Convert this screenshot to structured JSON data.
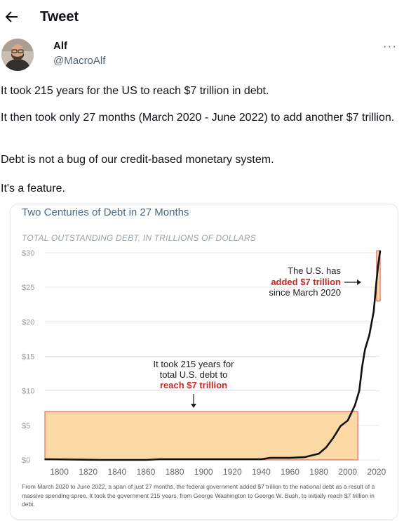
{
  "header": {
    "title": "Tweet",
    "back_icon": "arrow-left-icon"
  },
  "author": {
    "name": "Alf",
    "handle": "@MacroAlf",
    "more_icon": "more-horizontal-icon"
  },
  "tweet": {
    "line1": "It took 215 years for the US to reach $7 trillion in debt.",
    "line2": "It then took only 27 months (March 2020 - June 2022) to add another $7 trillion.",
    "line3": "Debt is not a bug of our credit-based monetary system.",
    "line4": "It's a feature."
  },
  "chart": {
    "title": "Two Centuries of Debt in 27 Months",
    "subtitle": "TOTAL OUTSTANDING DEBT, IN TRILLIONS OF DOLLARS",
    "annotation_right": {
      "l1": "The U.S. has",
      "l2": "added $7 trillion",
      "l3": "since March 2020"
    },
    "annotation_left": {
      "l1": "It took 215 years for",
      "l2": "total U.S. debt to",
      "l3": "reach $7 trillion"
    },
    "footnote": "From March 2020 to June 2022, a span of just 27 months, the federal government added $7 trillion to the national debt as a result of a massive spending spree. It took the government 215 years, from George Washington to George W. Bush, to initially reach $7 trillion in debt.",
    "colors": {
      "line": "#111111",
      "box_fill": "#fbd9a4",
      "box_stroke": "#d9534f",
      "highlight": "#c62828",
      "grid": "#e3e3e3"
    }
  },
  "chart_data": {
    "type": "line",
    "title": "Two Centuries of Debt in 27 Months",
    "subtitle": "TOTAL OUTSTANDING DEBT, IN TRILLIONS OF DOLLARS",
    "xlim": [
      1790,
      2022
    ],
    "ylim": [
      0,
      30
    ],
    "x_ticks": [
      1800,
      1820,
      1840,
      1860,
      1880,
      1900,
      1920,
      1940,
      1960,
      1980,
      2000,
      2020
    ],
    "y_ticks": [
      0,
      5,
      10,
      15,
      20,
      25,
      30
    ],
    "y_tick_labels": [
      "$0",
      "$5",
      "$10",
      "$15",
      "$20",
      "$25",
      "$30"
    ],
    "grid": true,
    "series": [
      {
        "x": [
          1790,
          1830,
          1860,
          1870,
          1900,
          1915,
          1920,
          1940,
          1946,
          1960,
          1970,
          1980,
          1985,
          1990,
          1995,
          2000,
          2005,
          2008,
          2010,
          2012,
          2015,
          2018,
          2020,
          2021,
          2022.5
        ],
        "values": [
          0.1,
          0,
          0,
          0.1,
          0.1,
          0.1,
          0.1,
          0.1,
          0.3,
          0.3,
          0.4,
          0.9,
          1.8,
          3.2,
          4.9,
          5.7,
          7.9,
          10.0,
          13.5,
          16.0,
          18.1,
          21.5,
          26.0,
          28.0,
          30.3
        ]
      }
    ],
    "highlight_boxes": [
      {
        "x": [
          1790,
          2007
        ],
        "y": [
          0,
          7
        ],
        "label": "It took 215 years for total U.S. debt to reach $7 trillion"
      },
      {
        "x": [
          2020,
          2022.5
        ],
        "y": [
          23,
          30.3
        ],
        "label": "The U.S. has added $7 trillion since March 2020"
      }
    ]
  }
}
